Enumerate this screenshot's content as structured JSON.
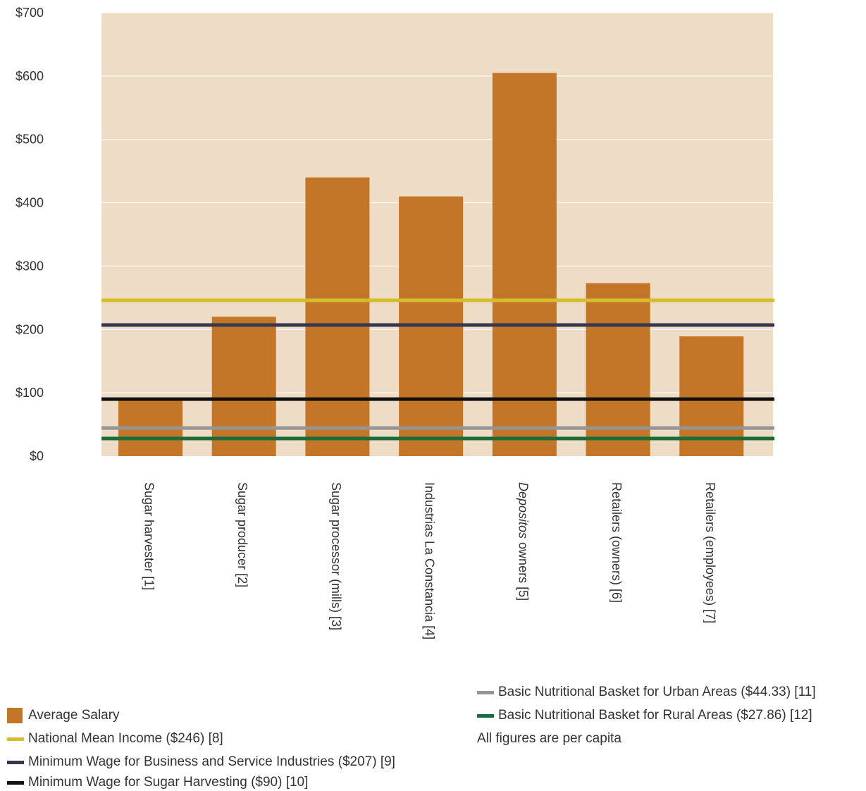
{
  "chart_data": {
    "type": "bar",
    "categories": [
      "Sugar harvester [1]",
      "Sugar producer [2]",
      "Sugar processor (mills) [3]",
      "Industrias La Constancia [4]",
      "Depositos owners [5]",
      "Retailers (owners) [6]",
      "Retailers (employees) [7]"
    ],
    "category_labels": [
      {
        "italic": "",
        "rest": "Sugar harvester [1]"
      },
      {
        "italic": "",
        "rest": "Sugar producer [2]"
      },
      {
        "italic": "",
        "rest": "Sugar processor (mills) [3]"
      },
      {
        "italic": "",
        "rest": "Industrias La Constancia [4]"
      },
      {
        "italic": "Depositos",
        "rest": " owners [5]"
      },
      {
        "italic": "",
        "rest": "Retailers (owners) [6]"
      },
      {
        "italic": "",
        "rest": "Retailers (employees) [7]"
      }
    ],
    "series": [
      {
        "name": "Average Salary",
        "color": "#c47628",
        "values": [
          90,
          220,
          440,
          410,
          605,
          273,
          189
        ]
      }
    ],
    "reference_lines": [
      {
        "name": "National Mean Income ($246) [8]",
        "value": 246,
        "color": "#d4bc2c"
      },
      {
        "name": "Minimum Wage for Business and Service Industries ($207) [9]",
        "value": 207,
        "color": "#343652"
      },
      {
        "name": "Minimum Wage for Sugar Harvesting ($90) [10]",
        "value": 90,
        "color": "#111111"
      },
      {
        "name": "Basic Nutritional Basket for Urban Areas ($44.33) [11]",
        "value": 44.33,
        "color": "#959595"
      },
      {
        "name": "Basic Nutritional Basket for Rural Areas ($27.86) [12]",
        "value": 27.86,
        "color": "#1b6a3a"
      }
    ],
    "y_ticks": [
      "$0",
      "$100",
      "$200",
      "$300",
      "$400",
      "$500",
      "$600",
      "$700"
    ],
    "ylim": [
      0,
      700
    ],
    "grid": true,
    "plot_background": "#efdcc7",
    "note": "All figures are per capita"
  }
}
